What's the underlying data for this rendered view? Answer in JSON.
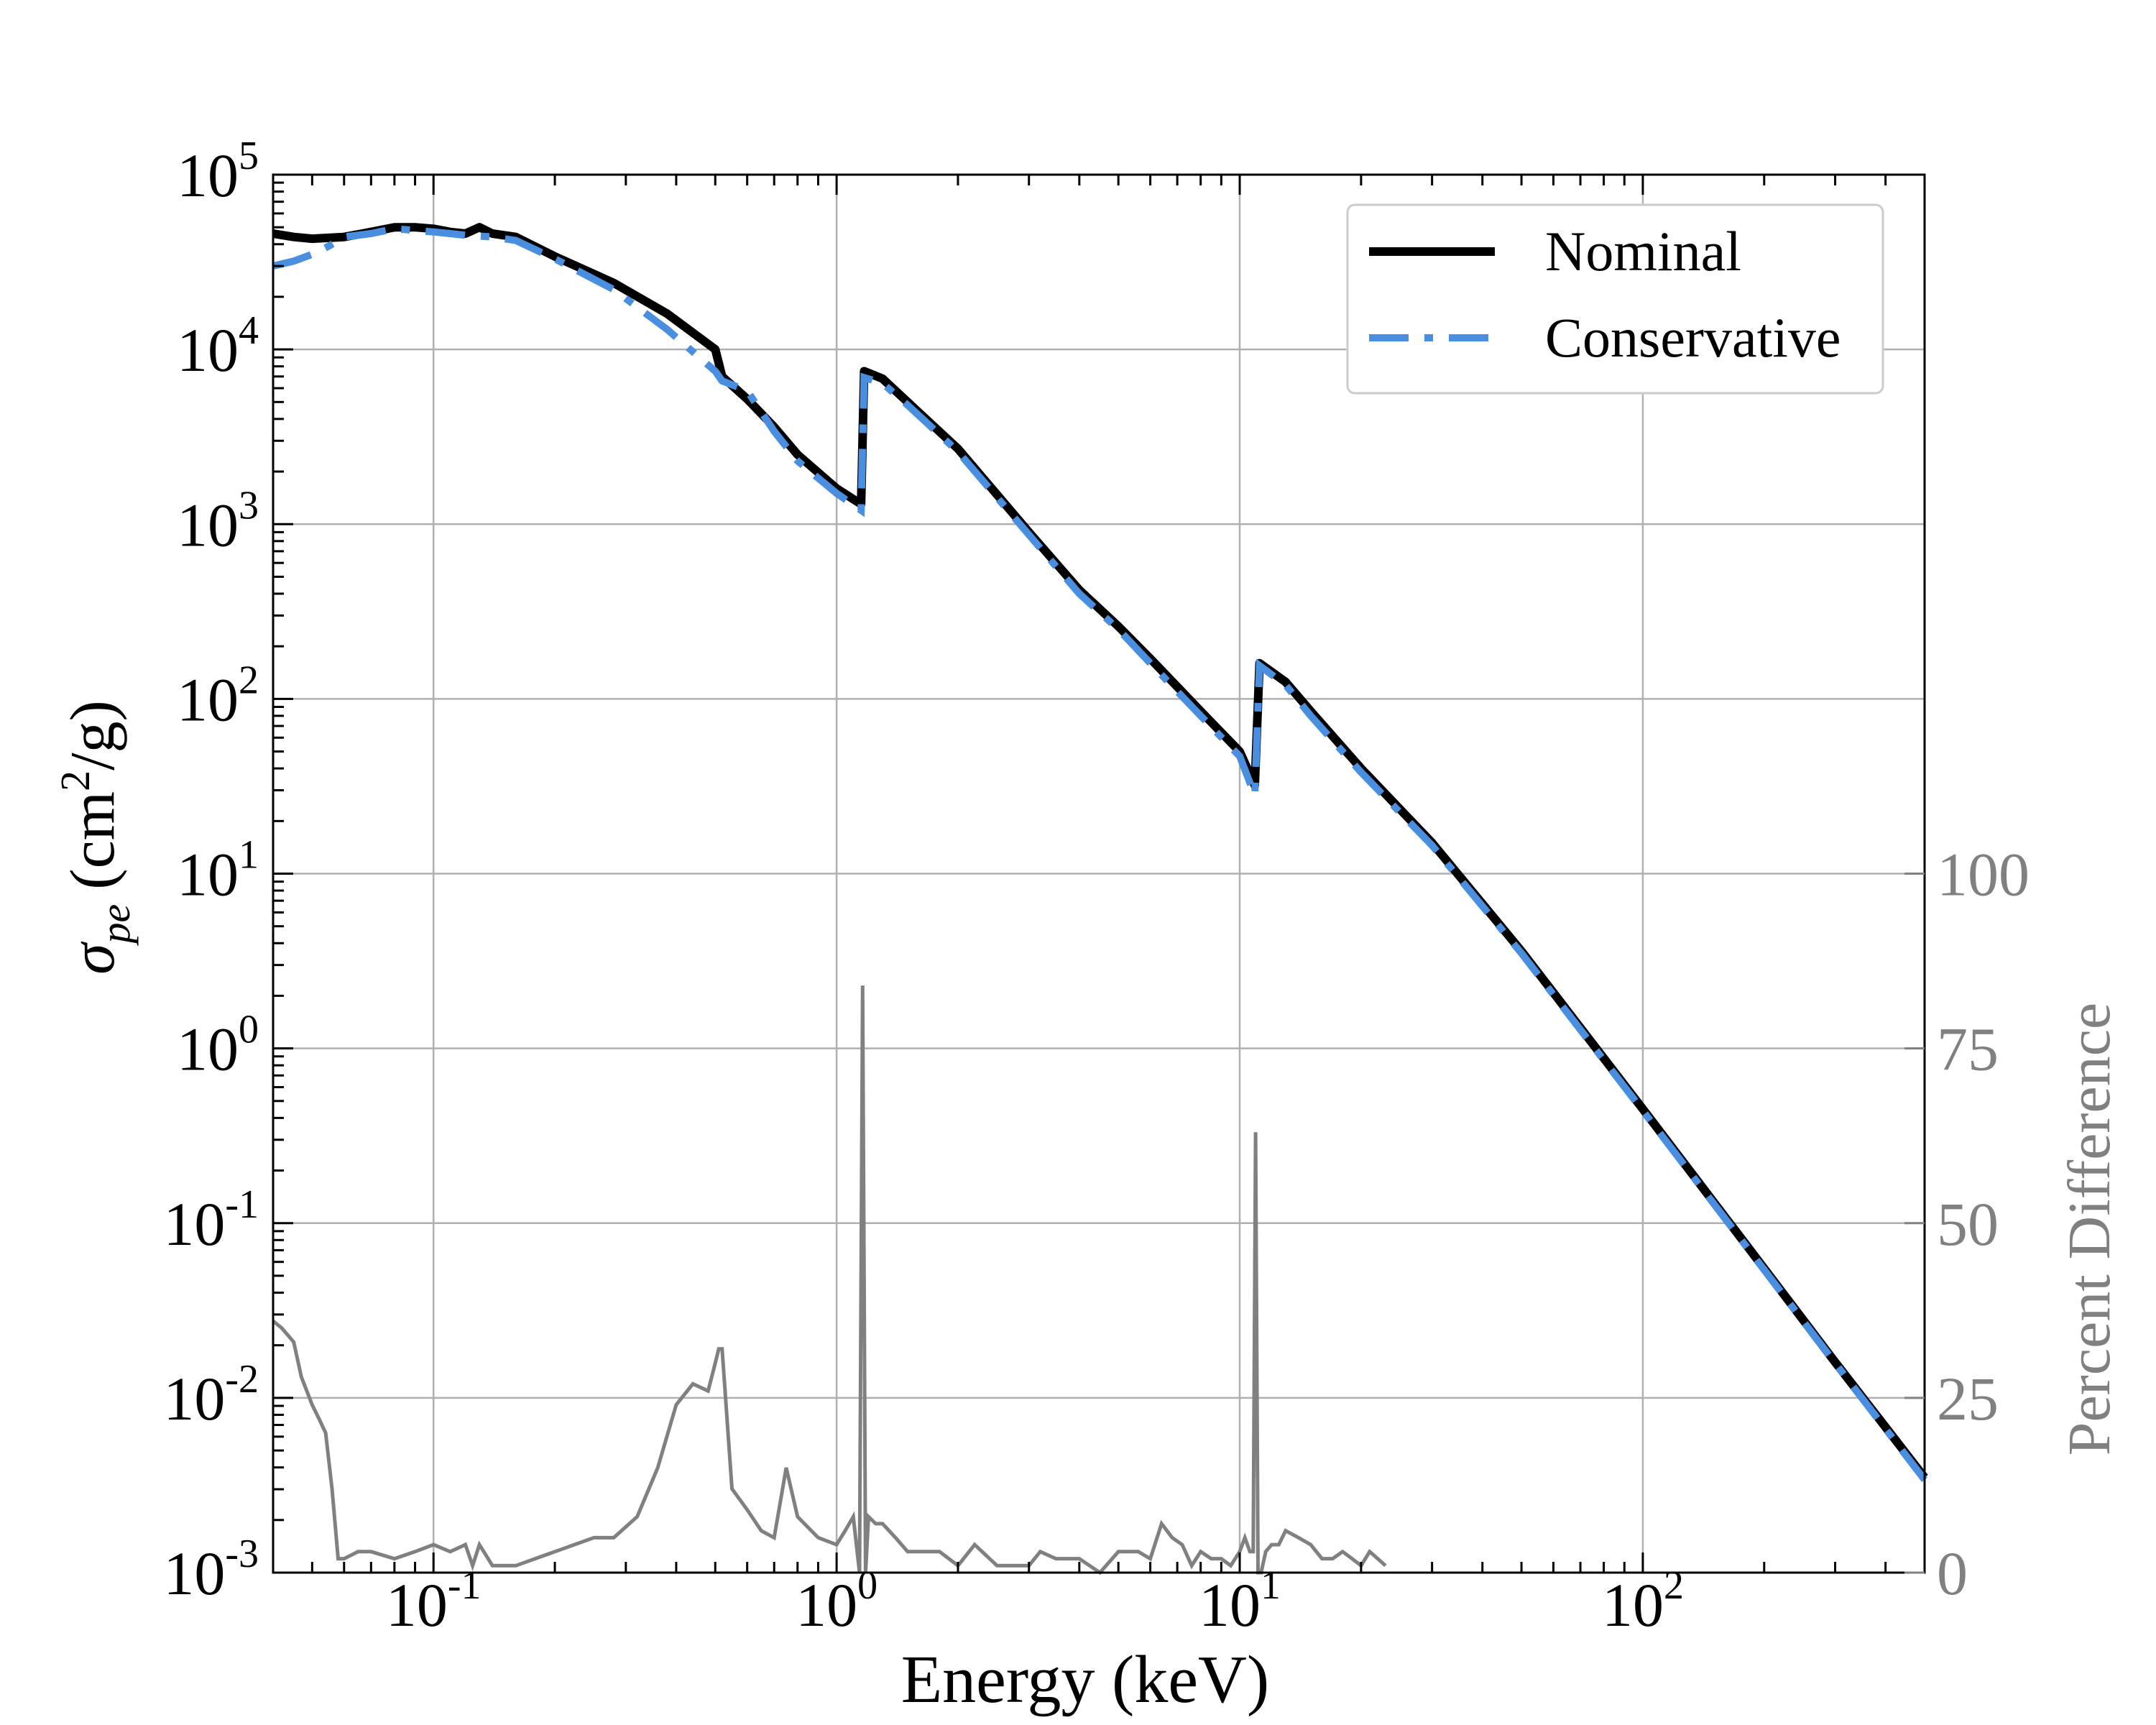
{
  "chart_data": {
    "type": "line",
    "x_scale": "log",
    "y_scale": "log",
    "xlim": [
      0.04,
      500
    ],
    "ylim": [
      0.001,
      100000
    ],
    "y2lim": [
      0,
      200
    ],
    "xlabel": "Energy (keV)",
    "ylabel": {
      "symbol": "σ",
      "subscript": "pe",
      "unit_open": "(cm",
      "unit_sup": "2",
      "unit_close": "/g)"
    },
    "y2label": "Percent Difference",
    "x_ticks": [
      {
        "value": 0.1,
        "base": "10",
        "exp": "-1"
      },
      {
        "value": 1,
        "base": "10",
        "exp": "0"
      },
      {
        "value": 10,
        "base": "10",
        "exp": "1"
      },
      {
        "value": 100,
        "base": "10",
        "exp": "2"
      }
    ],
    "y_ticks": [
      {
        "value": 100000,
        "base": "10",
        "exp": "5"
      },
      {
        "value": 10000,
        "base": "10",
        "exp": "4"
      },
      {
        "value": 1000,
        "base": "10",
        "exp": "3"
      },
      {
        "value": 100,
        "base": "10",
        "exp": "2"
      },
      {
        "value": 10,
        "base": "10",
        "exp": "1"
      },
      {
        "value": 1,
        "base": "10",
        "exp": "0"
      },
      {
        "value": 0.1,
        "base": "10",
        "exp": "-1"
      },
      {
        "value": 0.01,
        "base": "10",
        "exp": "-2"
      },
      {
        "value": 0.001,
        "base": "10",
        "exp": "-3"
      }
    ],
    "y2_ticks": [
      {
        "value": 0,
        "label": "0"
      },
      {
        "value": 25,
        "label": "25"
      },
      {
        "value": 50,
        "label": "50"
      },
      {
        "value": 75,
        "label": "75"
      },
      {
        "value": 100,
        "label": "100"
      }
    ],
    "legend": {
      "position": "top-right",
      "entries": [
        "Nominal",
        "Conservative"
      ]
    },
    "grid": true,
    "colors": {
      "nominal": "#000000",
      "conservative": "#4a8ee0",
      "difference": "#808080",
      "grid": "#b0b0b0"
    },
    "series": [
      {
        "name": "Nominal",
        "style": "solid",
        "x": [
          0.04,
          0.045,
          0.05,
          0.055,
          0.06,
          0.07,
          0.08,
          0.09,
          0.1,
          0.11,
          0.12,
          0.13,
          0.14,
          0.16,
          0.2,
          0.28,
          0.38,
          0.5,
          0.52,
          0.6,
          0.7,
          0.8,
          1.0,
          1.15,
          1.17,
          1.3,
          1.5,
          2,
          3,
          4,
          5,
          6,
          8,
          10,
          10.9,
          11.2,
          13,
          15,
          20,
          30,
          50,
          100,
          200,
          300,
          500
        ],
        "values": [
          46000,
          44000,
          43000,
          43500,
          44000,
          47000,
          50000,
          50000,
          49000,
          47000,
          46000,
          50000,
          46000,
          44000,
          34000,
          24000,
          16000,
          10000,
          7000,
          5200,
          3600,
          2500,
          1600,
          1300,
          7500,
          6800,
          5000,
          2700,
          900,
          420,
          260,
          170,
          85,
          50,
          32,
          160,
          125,
          85,
          40,
          15,
          3.6,
          0.45,
          0.055,
          0.016,
          0.0035
        ]
      },
      {
        "name": "Conservative",
        "style": "dash-dot",
        "x": [
          0.04,
          0.045,
          0.05,
          0.055,
          0.06,
          0.07,
          0.08,
          0.09,
          0.1,
          0.11,
          0.12,
          0.14,
          0.16,
          0.2,
          0.28,
          0.38,
          0.5,
          0.52,
          0.6,
          0.7,
          0.8,
          1.0,
          1.15,
          1.17,
          1.3,
          1.5,
          2,
          3,
          4,
          5,
          6,
          8,
          10,
          10.9,
          11.2,
          13,
          15,
          20,
          30,
          50,
          100,
          200,
          300,
          500
        ],
        "values": [
          30000,
          32000,
          35000,
          39000,
          44000,
          46000,
          49000,
          48000,
          47000,
          46000,
          45000,
          44000,
          42000,
          33000,
          22000,
          13000,
          7500,
          6600,
          5800,
          3400,
          2300,
          1500,
          1200,
          6900,
          6400,
          4800,
          2600,
          870,
          400,
          250,
          160,
          80,
          47,
          28,
          155,
          120,
          80,
          38,
          14.5,
          3.5,
          0.44,
          0.054,
          0.0158,
          0.0034
        ]
      },
      {
        "name": "Percent Difference",
        "axis": "secondary",
        "style": "solid",
        "x": [
          0.04,
          0.042,
          0.045,
          0.047,
          0.05,
          0.052,
          0.054,
          0.056,
          0.058,
          0.06,
          0.065,
          0.07,
          0.08,
          0.09,
          0.1,
          0.11,
          0.12,
          0.125,
          0.13,
          0.14,
          0.16,
          0.2,
          0.25,
          0.28,
          0.32,
          0.36,
          0.4,
          0.44,
          0.48,
          0.5,
          0.51,
          0.52,
          0.55,
          0.6,
          0.65,
          0.7,
          0.75,
          0.8,
          0.9,
          1.0,
          1.05,
          1.1,
          1.14,
          1.16,
          1.18,
          1.2,
          1.25,
          1.3,
          1.4,
          1.5,
          1.6,
          1.8,
          2.0,
          2.2,
          2.5,
          2.8,
          3.0,
          3.2,
          3.5,
          3.8,
          4.0,
          4.5,
          5.0,
          5.3,
          5.6,
          6.0,
          6.4,
          6.8,
          7.2,
          7.6,
          8.0,
          8.5,
          9.0,
          9.5,
          10.0,
          10.3,
          10.6,
          10.8,
          10.95,
          11.1,
          11.3,
          11.6,
          12,
          12.5,
          13,
          14,
          15,
          16,
          17,
          18,
          19,
          20,
          21,
          22,
          23
        ],
        "values": [
          36,
          35,
          33,
          28,
          24,
          22,
          20,
          12,
          2,
          2,
          3,
          3,
          2,
          3,
          4,
          3,
          4,
          1,
          4,
          1,
          1,
          3,
          5,
          5,
          8,
          15,
          24,
          27,
          26,
          30,
          32,
          32,
          12,
          9,
          6,
          5,
          15,
          8,
          5,
          4,
          6,
          8,
          0,
          84,
          0,
          8,
          7,
          7,
          5,
          3,
          3,
          3,
          1,
          4,
          1,
          1,
          1,
          3,
          2,
          2,
          2,
          0,
          3,
          3,
          3,
          2,
          7,
          5,
          4,
          1,
          3,
          2,
          2,
          1,
          3,
          5,
          3,
          3,
          63,
          0,
          0,
          3,
          4,
          4,
          6,
          5,
          4,
          2,
          2,
          3,
          2,
          1,
          3,
          2,
          1
        ]
      }
    ]
  }
}
